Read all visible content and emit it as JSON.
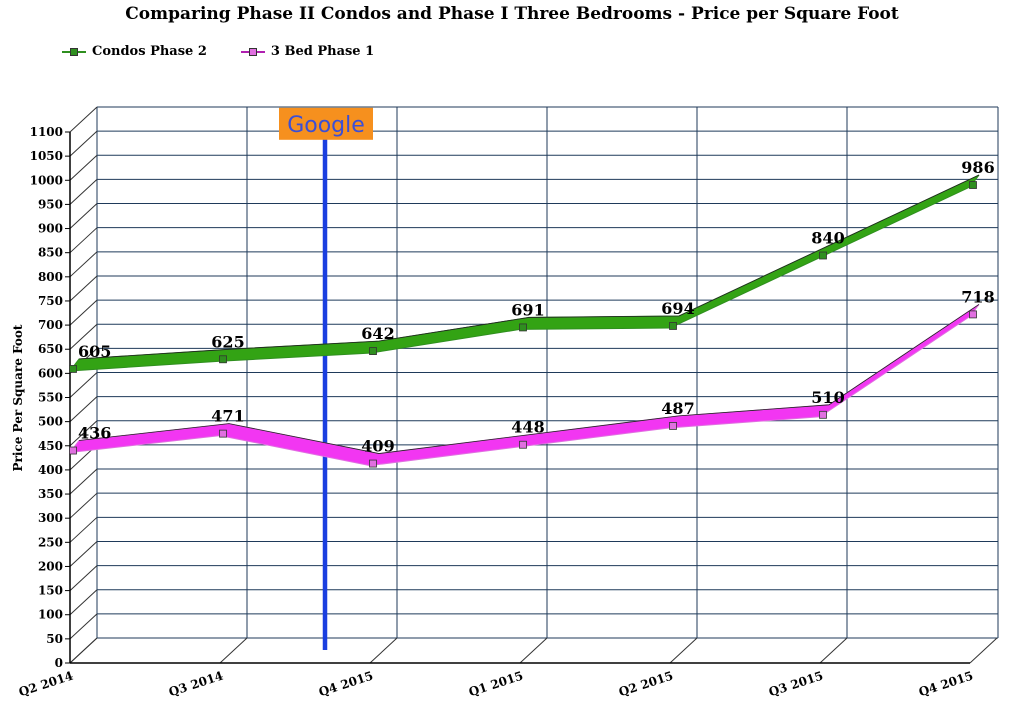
{
  "chart_data": {
    "type": "line",
    "title": "Comparing Phase II Condos and Phase I Three Bedrooms - Price per Square Foot",
    "xlabel": "",
    "ylabel": "Price Per Square Foot",
    "categories": [
      "Q2 2014",
      "Q3 2014",
      "Q4 2015",
      "Q1 2015",
      "Q2 2015",
      "Q3 2015",
      "Q4 2015"
    ],
    "ylim": [
      0,
      1100
    ],
    "ytick_step": 50,
    "grid": true,
    "legend_position": "top-left",
    "series": [
      {
        "name": "Condos Phase 2",
        "values": [
          605,
          625,
          642,
          691,
          694,
          840,
          986
        ],
        "color": "#33a314",
        "marker_color": "#2f8f1f"
      },
      {
        "name": "3 Bed Phase 1",
        "values": [
          436,
          471,
          409,
          448,
          487,
          510,
          718
        ],
        "color": "#f236f2",
        "marker_color": "#e070e0"
      }
    ],
    "annotation": {
      "text": "Google",
      "category_index": 1.7,
      "value": 1030,
      "line_color": "#1a3fe0",
      "box_color": "#f6901e",
      "text_color": "#3b4fd6"
    }
  }
}
